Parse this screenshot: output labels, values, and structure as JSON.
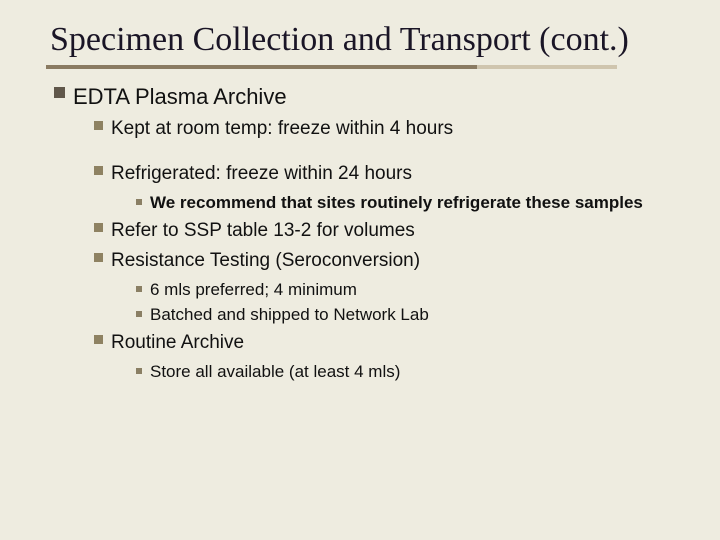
{
  "title": "Specimen Collection and Transport (cont.)",
  "colors": {
    "background": "#eeece0",
    "title_text": "#1a1526",
    "body_text": "#111111",
    "underline_main": "#8a7b62",
    "underline_light": "#cfc5ae",
    "bullet_dark": "#60574a",
    "bullet_olive": "#8e8262",
    "bullet_small": "#8a7f64"
  },
  "typography": {
    "title_family": "Times New Roman",
    "title_size_pt": 26,
    "body_family": "Arial",
    "lvl1_size_pt": 17,
    "lvl2_size_pt": 14,
    "lvl3_size_pt": 13
  },
  "lvl1": {
    "heading": "EDTA Plasma Archive"
  },
  "lvl2": {
    "kept": "Kept at room temp: freeze within 4 hours",
    "refrig": "Refrigerated: freeze within 24 hours",
    "refer": "Refer to SSP table 13-2 for volumes",
    "resist": "Resistance Testing (Seroconversion)",
    "routine": "Routine Archive"
  },
  "lvl3": {
    "recommend": "We recommend that sites routinely refrigerate these samples",
    "six_ml": "6 mls preferred; 4 minimum",
    "batched": "Batched and shipped to Network Lab",
    "store": "Store all available (at least 4 mls)"
  }
}
